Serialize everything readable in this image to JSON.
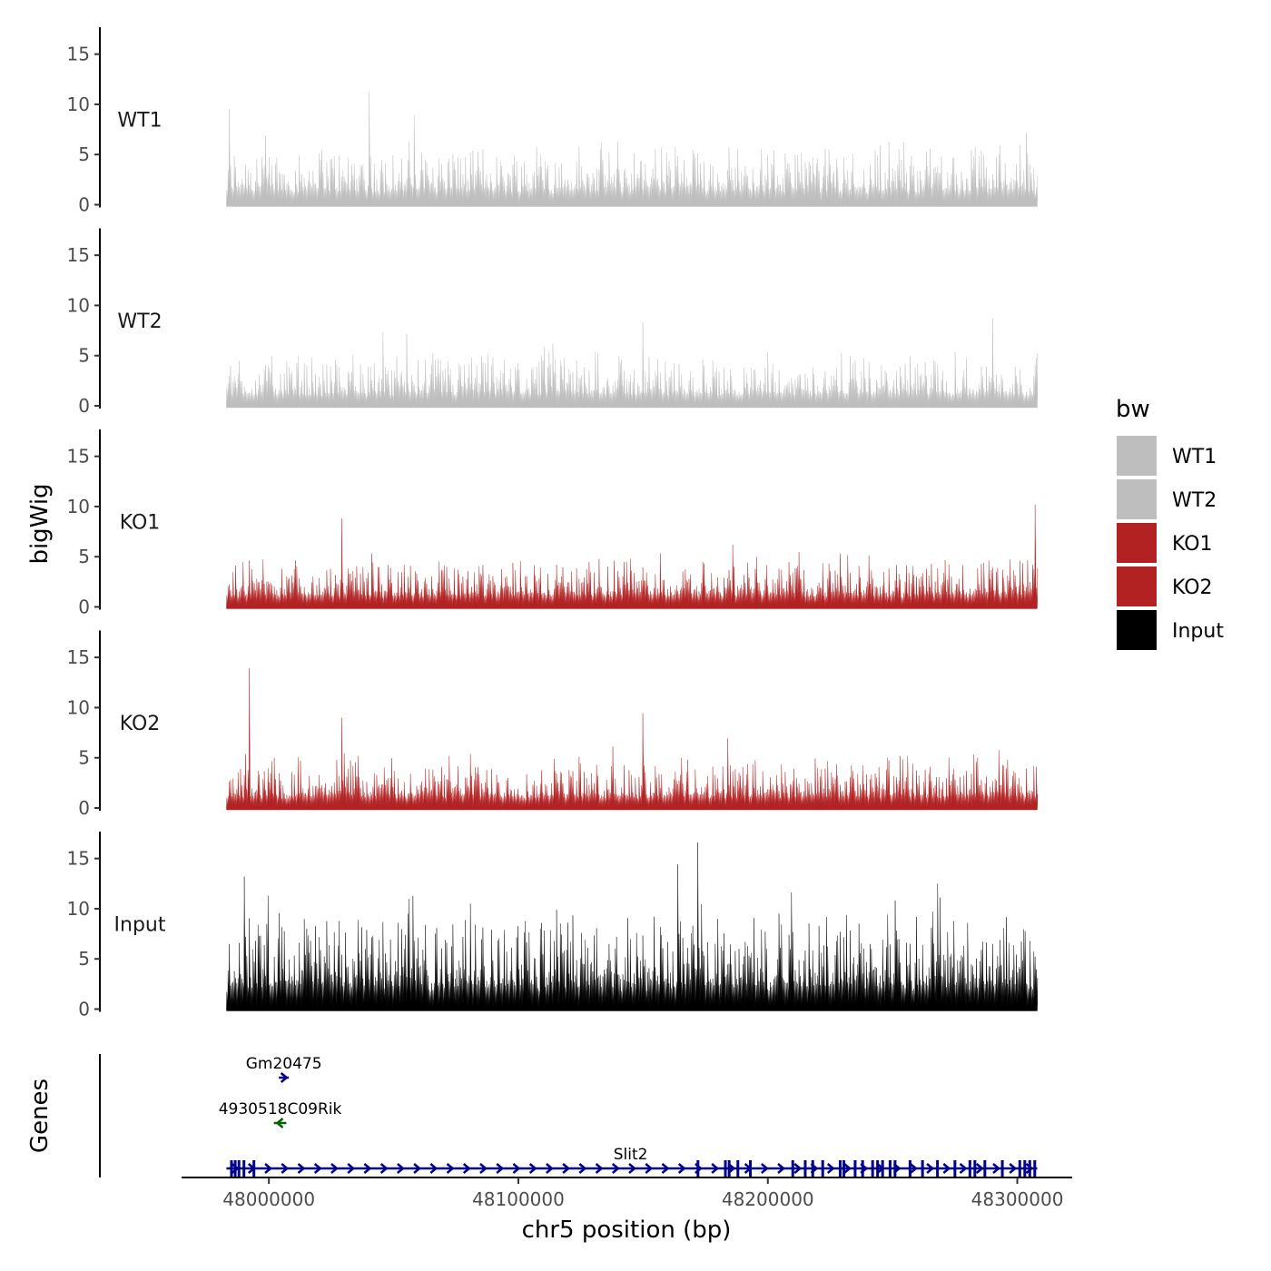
{
  "chart_data": {
    "type": "area",
    "xlabel": "chr5 position (bp)",
    "ylabel": "bigWig",
    "genes_ylabel": "Genes",
    "xlim": [
      47965000,
      48322000
    ],
    "data_range": [
      47983000,
      48308000
    ],
    "x_ticks": [
      48000000,
      48100000,
      48200000,
      48300000
    ],
    "x_tick_labels": [
      "48000000",
      "48100000",
      "48200000",
      "48300000"
    ],
    "ylim": [
      0,
      17.5
    ],
    "y_ticks": [
      0,
      5,
      10,
      15
    ],
    "y_tick_labels": [
      "0",
      "5",
      "10",
      "15"
    ],
    "legend": {
      "title": "bw",
      "position": "right",
      "entries": [
        {
          "label": "WT1",
          "color": "#bebebe"
        },
        {
          "label": "WT2",
          "color": "#bebebe"
        },
        {
          "label": "KO1",
          "color": "#b22222"
        },
        {
          "label": "KO2",
          "color": "#b22222"
        },
        {
          "label": "Input",
          "color": "#000000"
        }
      ]
    },
    "tracks": [
      {
        "name": "WT1",
        "color": "#bebebe",
        "typical_max": 6,
        "peaks": [
          [
            48040000,
            11.2
          ],
          [
            48058000,
            8.9
          ],
          [
            47984000,
            9.5
          ]
        ]
      },
      {
        "name": "WT2",
        "color": "#bebebe",
        "typical_max": 5,
        "peaks": [
          [
            48150000,
            8.3
          ],
          [
            48290000,
            8.7
          ],
          [
            48055000,
            7.2
          ]
        ]
      },
      {
        "name": "KO1",
        "color": "#b22222",
        "typical_max": 5,
        "peaks": [
          [
            48307000,
            10.2
          ],
          [
            48029000,
            8.8
          ],
          [
            48186000,
            6.2
          ]
        ]
      },
      {
        "name": "KO2",
        "color": "#b22222",
        "typical_max": 5,
        "peaks": [
          [
            47992000,
            13.9
          ],
          [
            48150000,
            9.4
          ],
          [
            48029000,
            9.0
          ]
        ]
      },
      {
        "name": "Input",
        "color": "#000000",
        "typical_max": 10,
        "peaks": [
          [
            48172000,
            16.6
          ],
          [
            48164000,
            14.4
          ],
          [
            48268000,
            12.5
          ],
          [
            47990000,
            13.2
          ]
        ]
      }
    ],
    "genes": [
      {
        "name": "Gm20475",
        "start": 48004000,
        "end": 48008000,
        "strand": "+",
        "color": "#00008b",
        "row": 1
      },
      {
        "name": "4930518C09Rik",
        "start": 48002000,
        "end": 48007000,
        "strand": "-",
        "color": "#006400",
        "row": 2
      },
      {
        "name": "Slit2",
        "start": 47983000,
        "end": 48308000,
        "strand": "+",
        "color": "#00008b",
        "row": 3,
        "exons": [
          47985000,
          47986500,
          47988000,
          47990000,
          47994000,
          48172000,
          48183000,
          48184500,
          48188000,
          48193000,
          48210000,
          48215000,
          48218000,
          48222000,
          48229000,
          48230500,
          48235000,
          48238000,
          48242000,
          48244000,
          48246000,
          48249000,
          48251000,
          48257000,
          48262000,
          48268000,
          48275000,
          48281000,
          48283000,
          48287000,
          48294000,
          48301000,
          48303000,
          48305000,
          48307000
        ]
      }
    ]
  }
}
